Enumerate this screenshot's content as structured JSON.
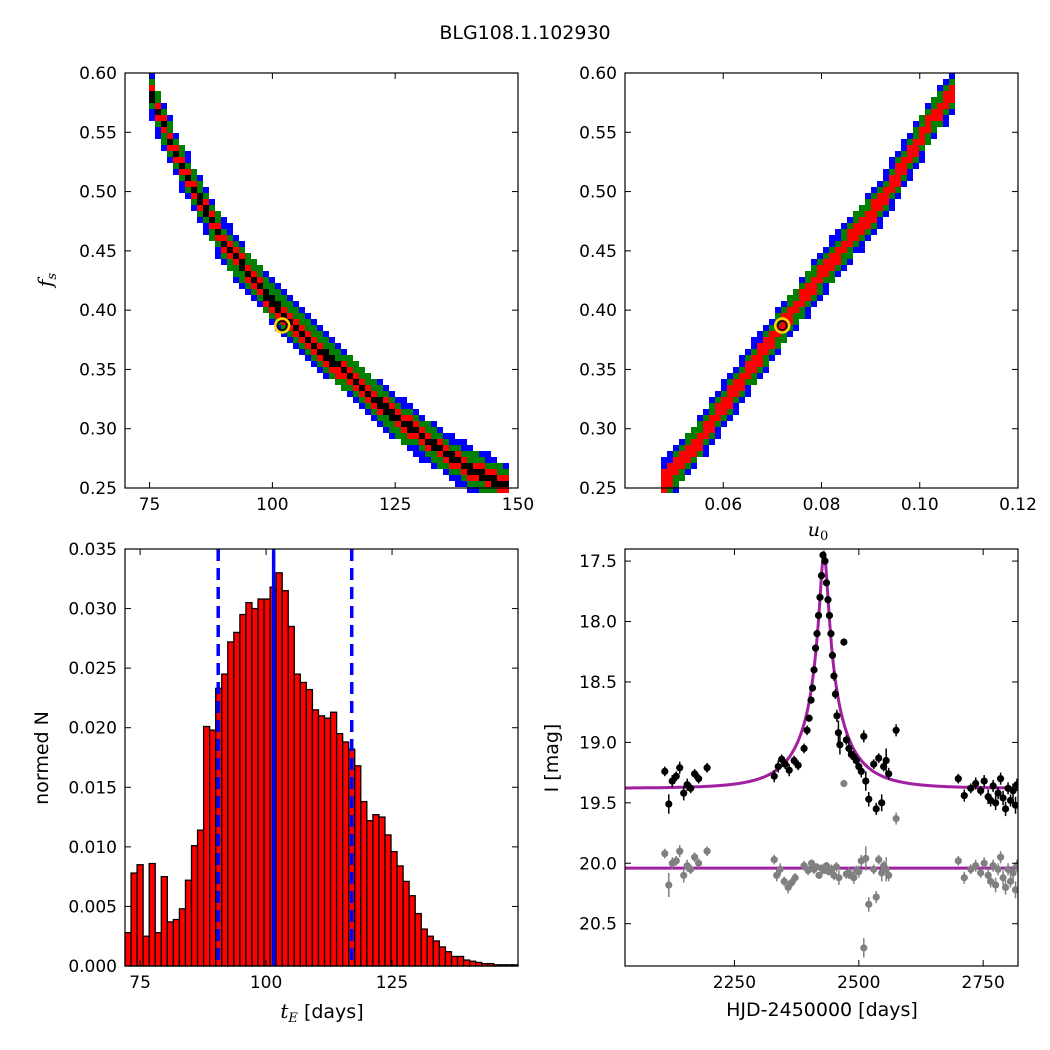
{
  "figure_title": "BLG108.1.102930",
  "chart_data": [
    {
      "id": "fs_vs_tE",
      "type": "heatmap",
      "title": "",
      "xlabel": "",
      "ylabel": "f_s",
      "xlim": [
        70,
        150
      ],
      "ylim": [
        0.25,
        0.6
      ],
      "xticks": [
        75,
        100,
        125,
        150
      ],
      "yticks": [
        0.25,
        0.3,
        0.35,
        0.4,
        0.45,
        0.5,
        0.55,
        0.6
      ],
      "colors": {
        "outer": "#0000ff",
        "middle": "#008000",
        "inner": "#ff0000",
        "core": "#000000"
      },
      "ridge": [
        [
          75,
          0.585
        ],
        [
          80,
          0.535
        ],
        [
          85,
          0.495
        ],
        [
          90,
          0.458
        ],
        [
          95,
          0.432
        ],
        [
          100,
          0.407
        ],
        [
          105,
          0.385
        ],
        [
          110,
          0.365
        ],
        [
          115,
          0.347
        ],
        [
          120,
          0.328
        ],
        [
          125,
          0.31
        ],
        [
          130,
          0.295
        ],
        [
          135,
          0.28
        ],
        [
          140,
          0.266
        ],
        [
          147,
          0.253
        ]
      ],
      "best_fit": {
        "x": 102,
        "y": 0.387
      }
    },
    {
      "id": "fs_vs_u0",
      "type": "heatmap",
      "title": "",
      "xlabel": "u_0",
      "ylabel": "",
      "xlim": [
        0.04,
        0.12
      ],
      "ylim": [
        0.25,
        0.6
      ],
      "xticks": [
        0.06,
        0.08,
        0.1,
        0.12
      ],
      "yticks": [
        0.25,
        0.3,
        0.35,
        0.4,
        0.45,
        0.5,
        0.55,
        0.6
      ],
      "colors": {
        "outer": "#0000ff",
        "middle": "#008000",
        "inner": "#ff0000",
        "core": "#000000"
      },
      "ridge": [
        [
          0.048,
          0.255
        ],
        [
          0.055,
          0.29
        ],
        [
          0.062,
          0.33
        ],
        [
          0.068,
          0.365
        ],
        [
          0.072,
          0.387
        ],
        [
          0.078,
          0.42
        ],
        [
          0.085,
          0.455
        ],
        [
          0.092,
          0.49
        ],
        [
          0.098,
          0.53
        ],
        [
          0.103,
          0.565
        ],
        [
          0.107,
          0.585
        ]
      ],
      "best_fit": {
        "x": 0.072,
        "y": 0.387
      }
    },
    {
      "id": "tE_histogram",
      "type": "bar",
      "title": "",
      "xlabel": "t_E [days]",
      "ylabel": "normed N",
      "xlim": [
        72,
        150
      ],
      "ylim": [
        0,
        0.035
      ],
      "xticks": [
        75,
        100,
        125
      ],
      "yticks": [
        0,
        0.005,
        0.01,
        0.015,
        0.02,
        0.025,
        0.03,
        0.035
      ],
      "bar_color": "#ff0000",
      "bin_start": 72,
      "bin_width": 1.2,
      "values": [
        0.0028,
        0.0078,
        0.0085,
        0.0025,
        0.0086,
        0.0028,
        0.0075,
        0.0037,
        0.0039,
        0.0048,
        0.0072,
        0.0101,
        0.0114,
        0.0201,
        0.0198,
        0.0233,
        0.0245,
        0.0272,
        0.028,
        0.0295,
        0.0305,
        0.03,
        0.0308,
        0.0308,
        0.0318,
        0.033,
        0.0315,
        0.0285,
        0.0245,
        0.0238,
        0.0232,
        0.0215,
        0.021,
        0.0208,
        0.0213,
        0.0195,
        0.0188,
        0.0182,
        0.0168,
        0.0138,
        0.0122,
        0.0127,
        0.0125,
        0.011,
        0.0096,
        0.0084,
        0.0071,
        0.0059,
        0.0044,
        0.0031,
        0.0025,
        0.0021,
        0.0016,
        0.0012,
        0.0008,
        0.0008,
        0.0005,
        0.0004,
        0.0003,
        0.0002,
        0.0002,
        0.0001,
        0.0001,
        0.0001,
        0.0001
      ],
      "median": 101.5,
      "interval": [
        90.5,
        117.0
      ],
      "line_color": "#0000ff"
    },
    {
      "id": "light_curve",
      "type": "scatter",
      "title": "",
      "xlabel": "HJD-2450000 [days]",
      "ylabel": "I [mag]",
      "xlim": [
        2030,
        2820
      ],
      "ylim": [
        20.85,
        17.4
      ],
      "xticks": [
        2250,
        2500,
        2750
      ],
      "yticks": [
        17.5,
        18.0,
        18.5,
        19.0,
        19.5,
        20.0,
        20.5
      ],
      "model": {
        "t0": 2430,
        "tE": 101.5,
        "u0": 0.072,
        "fs": 0.387,
        "baseline": 19.38,
        "color": "#a020a0"
      },
      "residual_baseline": 20.04,
      "series": [
        {
          "color": "#000000",
          "points": [
            [
              2110,
              19.24,
              0.04
            ],
            [
              2118,
              19.51,
              0.08
            ],
            [
              2125,
              19.32,
              0.05
            ],
            [
              2133,
              19.28,
              0.04
            ],
            [
              2140,
              19.21,
              0.05
            ],
            [
              2148,
              19.42,
              0.06
            ],
            [
              2155,
              19.35,
              0.05
            ],
            [
              2162,
              19.38,
              0.04
            ],
            [
              2170,
              19.26,
              0.04
            ],
            [
              2178,
              19.3,
              0.04
            ],
            [
              2195,
              19.21,
              0.04
            ],
            [
              2330,
              19.28,
              0.05
            ],
            [
              2338,
              19.2,
              0.05
            ],
            [
              2345,
              19.14,
              0.04
            ],
            [
              2352,
              19.18,
              0.04
            ],
            [
              2360,
              19.23,
              0.05
            ],
            [
              2370,
              19.15,
              0.04
            ],
            [
              2378,
              19.19,
              0.04
            ],
            [
              2390,
              19.05,
              0.04
            ],
            [
              2396,
              18.9,
              0.04
            ],
            [
              2400,
              18.8,
              0.03
            ],
            [
              2404,
              18.65,
              0.03
            ],
            [
              2407,
              18.55,
              0.03
            ],
            [
              2410,
              18.4,
              0.03
            ],
            [
              2413,
              18.22,
              0.03
            ],
            [
              2416,
              18.1,
              0.03
            ],
            [
              2419,
              17.95,
              0.03
            ],
            [
              2422,
              17.8,
              0.03
            ],
            [
              2425,
              17.62,
              0.03
            ],
            [
              2428,
              17.45,
              0.03
            ],
            [
              2432,
              17.5,
              0.03
            ],
            [
              2435,
              17.68,
              0.03
            ],
            [
              2438,
              17.82,
              0.03
            ],
            [
              2441,
              17.95,
              0.03
            ],
            [
              2444,
              18.1,
              0.03
            ],
            [
              2447,
              18.28,
              0.03
            ],
            [
              2450,
              18.45,
              0.04
            ],
            [
              2453,
              18.6,
              0.04
            ],
            [
              2456,
              18.78,
              0.05
            ],
            [
              2459,
              18.92,
              0.1
            ],
            [
              2462,
              19.02,
              0.08
            ],
            [
              2470,
              18.17,
              0.03
            ],
            [
              2475,
              18.98,
              0.04
            ],
            [
              2480,
              19.05,
              0.05
            ],
            [
              2485,
              19.1,
              0.04
            ],
            [
              2490,
              19.12,
              0.05
            ],
            [
              2495,
              19.15,
              0.04
            ],
            [
              2500,
              19.2,
              0.05
            ],
            [
              2505,
              19.24,
              0.05
            ],
            [
              2510,
              18.95,
              0.05
            ],
            [
              2514,
              19.32,
              0.08
            ],
            [
              2520,
              19.47,
              0.06
            ],
            [
              2530,
              19.18,
              0.04
            ],
            [
              2535,
              19.55,
              0.05
            ],
            [
              2540,
              19.13,
              0.04
            ],
            [
              2546,
              19.5,
              0.07
            ],
            [
              2550,
              19.2,
              0.04
            ],
            [
              2555,
              19.15,
              0.1
            ],
            [
              2560,
              19.26,
              0.05
            ],
            [
              2575,
              18.9,
              0.05
            ],
            [
              2700,
              19.3,
              0.04
            ],
            [
              2712,
              19.44,
              0.05
            ],
            [
              2725,
              19.38,
              0.04
            ],
            [
              2735,
              19.34,
              0.05
            ],
            [
              2745,
              19.4,
              0.04
            ],
            [
              2752,
              19.32,
              0.05
            ],
            [
              2760,
              19.45,
              0.06
            ],
            [
              2765,
              19.48,
              0.05
            ],
            [
              2770,
              19.36,
              0.05
            ],
            [
              2775,
              19.5,
              0.06
            ],
            [
              2780,
              19.42,
              0.05
            ],
            [
              2785,
              19.3,
              0.05
            ],
            [
              2790,
              19.46,
              0.06
            ],
            [
              2795,
              19.55,
              0.06
            ],
            [
              2800,
              19.38,
              0.05
            ],
            [
              2805,
              19.48,
              0.05
            ],
            [
              2810,
              19.4,
              0.06
            ],
            [
              2815,
              19.52,
              0.07
            ],
            [
              2818,
              19.35,
              0.05
            ]
          ]
        },
        {
          "color": "#808080",
          "points": [
            [
              2110,
              19.92,
              0.04
            ],
            [
              2118,
              20.18,
              0.1
            ],
            [
              2125,
              20.0,
              0.05
            ],
            [
              2133,
              19.98,
              0.04
            ],
            [
              2140,
              19.9,
              0.05
            ],
            [
              2148,
              20.1,
              0.06
            ],
            [
              2155,
              20.02,
              0.05
            ],
            [
              2162,
              20.05,
              0.04
            ],
            [
              2170,
              19.95,
              0.04
            ],
            [
              2178,
              20.0,
              0.04
            ],
            [
              2195,
              19.9,
              0.04
            ],
            [
              2330,
              19.97,
              0.04
            ],
            [
              2335,
              20.1,
              0.05
            ],
            [
              2342,
              20.05,
              0.05
            ],
            [
              2350,
              20.15,
              0.04
            ],
            [
              2358,
              20.2,
              0.05
            ],
            [
              2365,
              20.16,
              0.04
            ],
            [
              2372,
              20.12,
              0.04
            ],
            [
              2390,
              20.02,
              0.04
            ],
            [
              2398,
              20.06,
              0.04
            ],
            [
              2405,
              20.0,
              0.03
            ],
            [
              2410,
              20.05,
              0.04
            ],
            [
              2415,
              20.03,
              0.03
            ],
            [
              2420,
              20.1,
              0.03
            ],
            [
              2425,
              20.04,
              0.03
            ],
            [
              2430,
              20.06,
              0.03
            ],
            [
              2435,
              20.02,
              0.03
            ],
            [
              2440,
              20.07,
              0.03
            ],
            [
              2445,
              20.05,
              0.04
            ],
            [
              2450,
              20.1,
              0.04
            ],
            [
              2455,
              20.03,
              0.04
            ],
            [
              2460,
              20.12,
              0.06
            ],
            [
              2470,
              19.34,
              0.03
            ],
            [
              2475,
              20.09,
              0.04
            ],
            [
              2480,
              20.08,
              0.05
            ],
            [
              2485,
              20.1,
              0.04
            ],
            [
              2490,
              20.12,
              0.05
            ],
            [
              2495,
              20.06,
              0.04
            ],
            [
              2500,
              20.07,
              0.05
            ],
            [
              2505,
              19.98,
              0.05
            ],
            [
              2510,
              20.7,
              0.08
            ],
            [
              2514,
              19.96,
              0.1
            ],
            [
              2520,
              20.34,
              0.06
            ],
            [
              2530,
              20.05,
              0.04
            ],
            [
              2535,
              20.28,
              0.05
            ],
            [
              2540,
              19.97,
              0.04
            ],
            [
              2546,
              20.08,
              0.07
            ],
            [
              2550,
              20.02,
              0.04
            ],
            [
              2555,
              20.05,
              0.1
            ],
            [
              2560,
              20.1,
              0.05
            ],
            [
              2575,
              19.63,
              0.05
            ],
            [
              2700,
              19.98,
              0.04
            ],
            [
              2712,
              20.12,
              0.05
            ],
            [
              2725,
              20.05,
              0.04
            ],
            [
              2735,
              20.02,
              0.05
            ],
            [
              2745,
              20.08,
              0.04
            ],
            [
              2752,
              20.0,
              0.05
            ],
            [
              2760,
              20.1,
              0.06
            ],
            [
              2765,
              20.15,
              0.05
            ],
            [
              2770,
              20.02,
              0.05
            ],
            [
              2775,
              20.18,
              0.06
            ],
            [
              2780,
              20.05,
              0.05
            ],
            [
              2785,
              19.95,
              0.05
            ],
            [
              2790,
              20.12,
              0.06
            ],
            [
              2795,
              20.2,
              0.06
            ],
            [
              2800,
              20.05,
              0.05
            ],
            [
              2805,
              20.15,
              0.05
            ],
            [
              2810,
              20.08,
              0.06
            ],
            [
              2815,
              20.22,
              0.07
            ],
            [
              2818,
              20.02,
              0.05
            ]
          ]
        }
      ]
    }
  ]
}
